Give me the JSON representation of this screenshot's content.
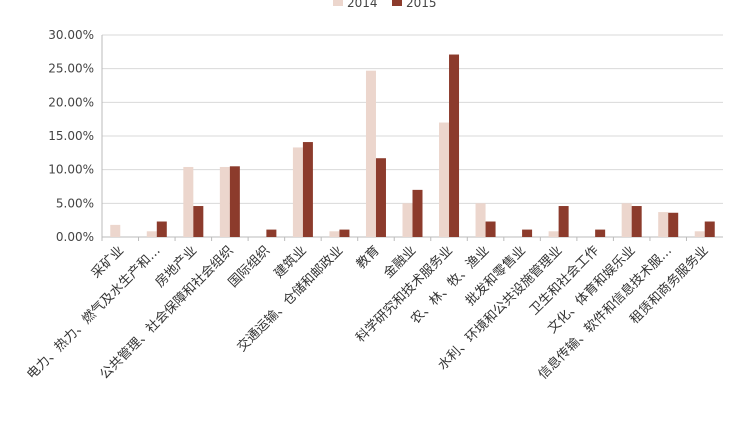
{
  "chart_data": {
    "type": "bar",
    "title": "",
    "xlabel": "",
    "ylabel": "",
    "ylim": [
      0,
      30
    ],
    "y_tick_labels": [
      "0.00%",
      "5.00%",
      "10.00%",
      "15.00%",
      "20.00%",
      "25.00%",
      "30.00%"
    ],
    "grid": true,
    "legend_position": "top",
    "categories": [
      "采矿业",
      "电力、热力、燃气及水生产和…",
      "房地产业",
      "公共管理、社会保障和社会组织",
      "国际组织",
      "建筑业",
      "交通运输、仓储和邮政业",
      "教育",
      "金融业",
      "科学研究和技术服务业",
      "农、林、牧、渔业",
      "批发和零售业",
      "水利、环境和公共设施管理业",
      "卫生和社会工作",
      "文化、体育和娱乐业",
      "信息传输、软件和信息技术服…",
      "租赁和商务服务业"
    ],
    "series": [
      {
        "name": "2014",
        "color": "#ecd6cd",
        "values": [
          1.8,
          0.85,
          10.4,
          10.4,
          0,
          13.3,
          0.85,
          24.7,
          5.0,
          17.0,
          5.0,
          0,
          0.85,
          0,
          5.0,
          3.7,
          0.85
        ]
      },
      {
        "name": "2015",
        "color": "#8c3b2c",
        "values": [
          0,
          2.3,
          4.6,
          10.5,
          1.1,
          14.1,
          1.1,
          11.7,
          7.0,
          27.1,
          2.3,
          1.1,
          4.6,
          1.1,
          4.6,
          3.6,
          2.3
        ]
      }
    ]
  }
}
